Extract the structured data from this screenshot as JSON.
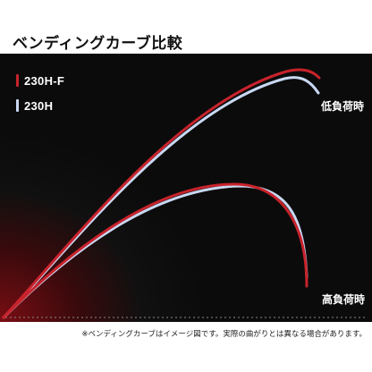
{
  "title": "ベンディングカーブ比較",
  "legend": [
    {
      "name": "230H-F",
      "color": "#c8232c"
    },
    {
      "name": "230H",
      "color": "#c9d8f2"
    }
  ],
  "load_labels": {
    "low": "低負荷時",
    "high": "高負荷時"
  },
  "footnote": "※ベンディングカーブはイメージ図です。実際の曲がりとは異なる場合があります。",
  "colors": {
    "panel_background": "#0b0b0b",
    "rod_230H-F": "#c8232c",
    "rod_230H": "#c9d8f2",
    "baseline": "#8a8a8a"
  },
  "chart_data": {
    "type": "diagram",
    "series": [
      {
        "name": "230H-F",
        "curves": [
          "低負荷時",
          "高負荷時"
        ]
      },
      {
        "name": "230H",
        "curves": [
          "低負荷時",
          "高負荷時"
        ]
      }
    ]
  }
}
